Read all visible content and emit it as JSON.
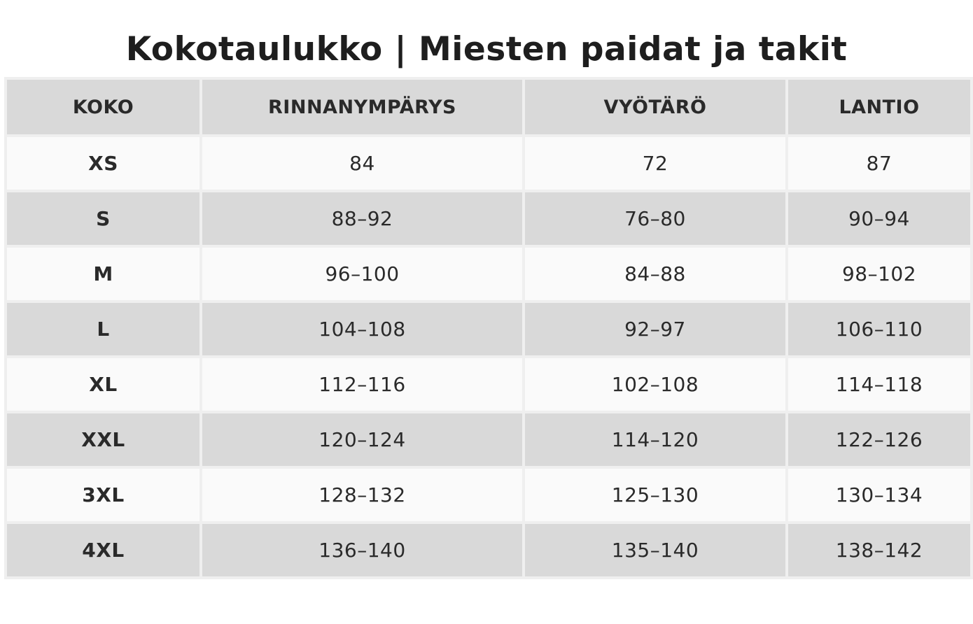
{
  "title": "Kokotaulukko | Miesten paidat ja takit",
  "table": {
    "headers": [
      "KOKO",
      "RINNANYMPÄRYS",
      "VYÖTÄRÖ",
      "LANTIO"
    ],
    "rows": [
      [
        "XS",
        "84",
        "72",
        "87"
      ],
      [
        "S",
        "88–92",
        "76–80",
        "90–94"
      ],
      [
        "M",
        "96–100",
        "84–88",
        "98–102"
      ],
      [
        "L",
        "104–108",
        "92–97",
        "106–110"
      ],
      [
        "XL",
        "112–116",
        "102–108",
        "114–118"
      ],
      [
        "XXL",
        "120–124",
        "114–120",
        "122–126"
      ],
      [
        "3XL",
        "128–132",
        "125–130",
        "130–134"
      ],
      [
        "4XL",
        "136–140",
        "135–140",
        "138–142"
      ]
    ]
  },
  "colors": {
    "header_bg": "#d9d9d9",
    "row_light": "#fafafa",
    "row_dark": "#d9d9d9",
    "border": "#efefef",
    "text": "#222222"
  }
}
